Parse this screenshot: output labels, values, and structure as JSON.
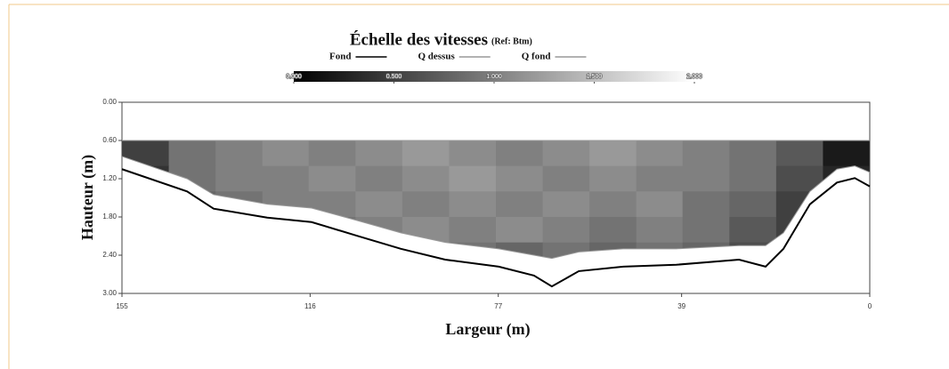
{
  "chart_data": {
    "type": "velocity-section",
    "title": "Échelle des vitesses",
    "subtitle": "(Ref: Btm)",
    "x_label": "Largeur (m)",
    "y_label": "Hauteur (m)",
    "xlim": [
      155,
      0
    ],
    "xticks": [
      155,
      116,
      77,
      39,
      0
    ],
    "ylim": [
      0,
      3
    ],
    "yticks": [
      {
        "value": 0,
        "label": "0.00"
      },
      {
        "value": 0.6,
        "label": "0.60"
      },
      {
        "value": 1.2,
        "label": "1.20"
      },
      {
        "value": 1.8,
        "label": "1.80"
      },
      {
        "value": 2.4,
        "label": "2.40"
      },
      {
        "value": 3,
        "label": "3.00"
      }
    ],
    "x": [
      155,
      141.5,
      136.0,
      124.9,
      115.7,
      106.5,
      97.2,
      88.0,
      76.9,
      69.6,
      65.9,
      60.3,
      51.1,
      40.1,
      27.1,
      21.6,
      17.9,
      12.4,
      6.8,
      3.1,
      0
    ],
    "series": [
      {
        "name": "Fond",
        "color": "#000000",
        "values": [
          1.05,
          1.4,
          1.67,
          1.81,
          1.88,
          2.09,
          2.3,
          2.47,
          2.58,
          2.72,
          2.89,
          2.65,
          2.58,
          2.55,
          2.47,
          2.58,
          2.3,
          1.6,
          1.26,
          1.19,
          1.32
        ]
      },
      {
        "name": "Q dessus",
        "color": "#999999",
        "values": [
          0.6,
          0.6,
          0.6,
          0.6,
          0.6,
          0.6,
          0.6,
          0.6,
          0.6,
          0.6,
          0.6,
          0.6,
          0.6,
          0.6,
          0.6,
          0.6,
          0.6,
          0.6,
          0.6,
          0.6,
          0.6
        ]
      },
      {
        "name": "Q fond",
        "color": "#999999",
        "values": [
          0.85,
          1.2,
          1.45,
          1.6,
          1.66,
          1.85,
          2.05,
          2.2,
          2.3,
          2.4,
          2.45,
          2.35,
          2.3,
          2.3,
          2.25,
          2.25,
          2.05,
          1.4,
          1.05,
          1.0,
          1.1
        ]
      }
    ],
    "heatmap": {
      "x_edges": [
        155,
        145.3,
        135.6,
        125.9,
        116.3,
        106.6,
        96.9,
        87.2,
        77.5,
        67.8,
        58.1,
        48.4,
        38.8,
        29.1,
        19.4,
        9.7,
        0
      ],
      "depth_edges": [
        0.6,
        1.0,
        1.4,
        1.8,
        2.2,
        2.6
      ],
      "values": [
        [
          0.5,
          0.9,
          1.0,
          1.1,
          1.0,
          1.1,
          1.2,
          1.1,
          1.0,
          1.1,
          1.2,
          1.1,
          1.0,
          0.9,
          0.7,
          0.2
        ],
        [
          0.4,
          0.9,
          1.0,
          1.0,
          1.1,
          1.0,
          1.1,
          1.2,
          1.1,
          1.0,
          1.1,
          1.0,
          1.0,
          0.9,
          0.6,
          0.3
        ],
        [
          0.3,
          0.8,
          0.9,
          1.0,
          1.0,
          1.1,
          1.0,
          1.1,
          1.0,
          1.1,
          1.0,
          1.1,
          0.9,
          0.8,
          0.5,
          0.4
        ],
        [
          0.3,
          0.7,
          0.8,
          0.9,
          0.9,
          1.0,
          1.1,
          1.0,
          1.1,
          1.0,
          0.9,
          1.0,
          0.9,
          0.7,
          0.5,
          0.4
        ],
        [
          0.2,
          0.5,
          0.6,
          0.7,
          0.8,
          0.8,
          0.9,
          0.9,
          0.8,
          0.9,
          0.8,
          0.9,
          0.8,
          0.6,
          0.5,
          0.4
        ]
      ],
      "clim": [
        0,
        2
      ],
      "cticks": [
        {
          "value": 0,
          "label": "0.000"
        },
        {
          "value": 0.5,
          "label": "0.500"
        },
        {
          "value": 1,
          "label": "1.000"
        },
        {
          "value": 1.5,
          "label": "1.500"
        },
        {
          "value": 2,
          "label": "2.000"
        }
      ]
    }
  }
}
